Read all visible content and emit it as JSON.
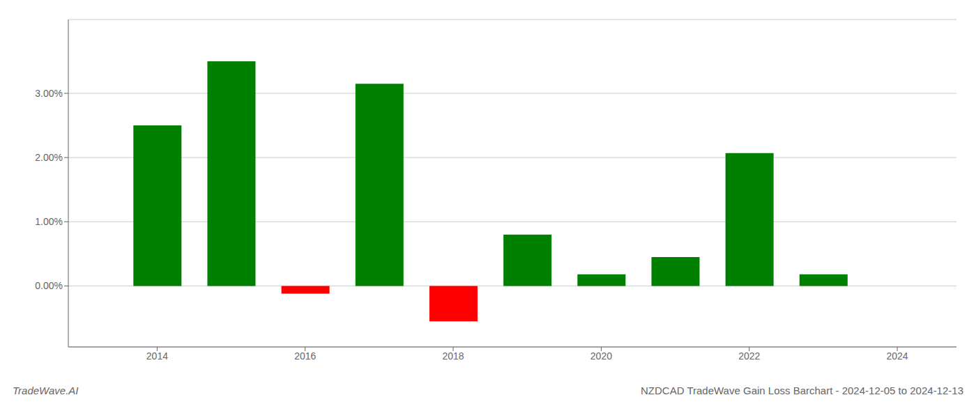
{
  "chart_data": {
    "type": "bar",
    "title": "NZDCAD TradeWave Gain Loss Barchart - 2024-12-05 to 2024-12-13",
    "annotations": [
      "TradeWave.AI"
    ],
    "x": [
      2014,
      2015,
      2016,
      2017,
      2018,
      2019,
      2020,
      2021,
      2022,
      2023
    ],
    "values": [
      0.025,
      0.035,
      -0.0012,
      0.0315,
      -0.0055,
      0.008,
      0.0018,
      0.0045,
      0.0207,
      0.0018
    ],
    "colors": [
      "#008000",
      "#008000",
      "#ff0000",
      "#008000",
      "#ff0000",
      "#008000",
      "#008000",
      "#008000",
      "#008000",
      "#008000"
    ],
    "xlim": [
      2012.8,
      2024.8
    ],
    "xticks": [
      2014,
      2016,
      2018,
      2020,
      2022,
      2024
    ],
    "ylim": [
      -0.0095,
      0.0415
    ],
    "yticks": [
      {
        "value": 0.0,
        "label": "0.00%"
      },
      {
        "value": 0.01,
        "label": "1.00%"
      },
      {
        "value": 0.02,
        "label": "2.00%"
      },
      {
        "value": 0.03,
        "label": "3.00%"
      }
    ],
    "grid": true
  }
}
